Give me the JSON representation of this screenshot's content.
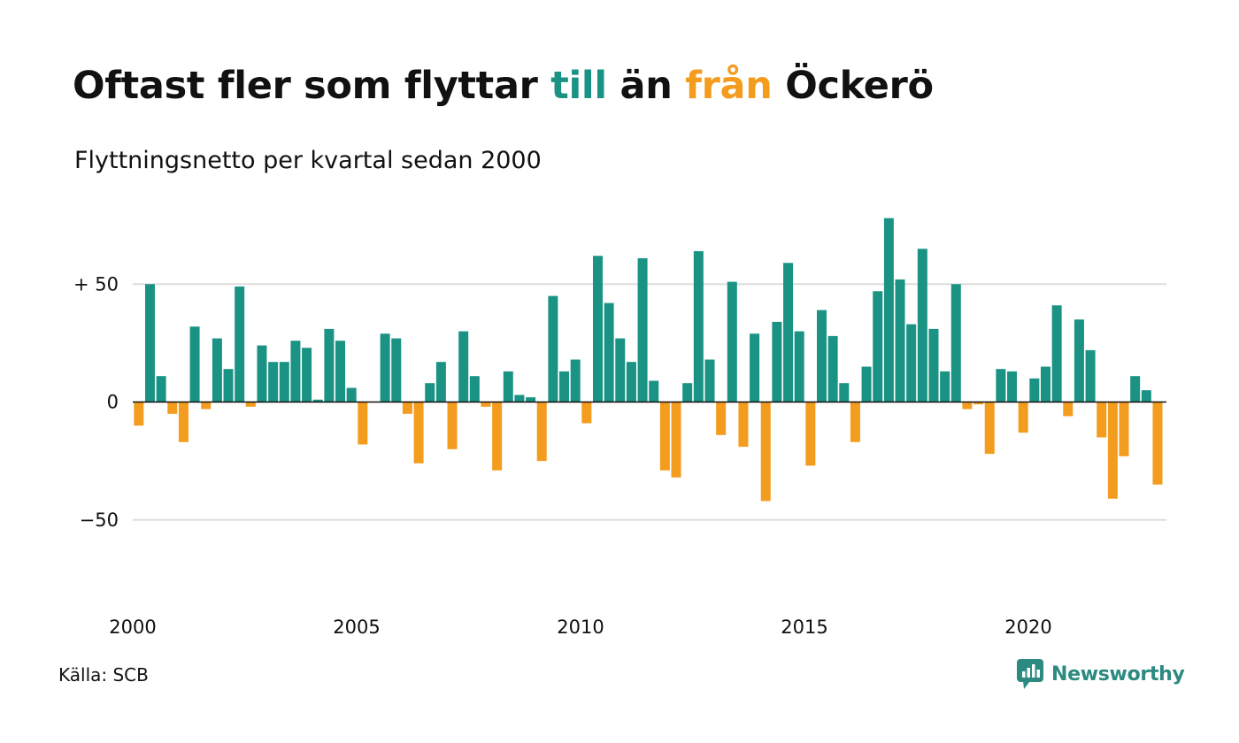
{
  "title": {
    "part1": "Oftast fler som flyttar ",
    "part2": "till",
    "part3": " än ",
    "part4": "från",
    "part5": " Öckerö"
  },
  "subtitle": "Flyttningsnetto per kvartal sedan 2000",
  "source": "Källa: SCB",
  "brand": {
    "name": "Newsworthy",
    "logo_icon": "newsworthy-chart-bubble-icon",
    "color": "#2c8a80"
  },
  "colors": {
    "positive": "#1a9384",
    "negative": "#f39c1e",
    "grid": "#dddddd",
    "zero_line": "#111111"
  },
  "chart_data": {
    "type": "bar",
    "title": "Oftast fler som flyttar till än från Öckerö",
    "subtitle": "Flyttningsnetto per kvartal sedan 2000",
    "x_start": "2000-Q1",
    "frequency": "quarterly",
    "values": [
      -10,
      50,
      11,
      -5,
      -17,
      32,
      -3,
      27,
      14,
      49,
      -2,
      24,
      17,
      17,
      26,
      23,
      1,
      31,
      26,
      6,
      -18,
      0,
      29,
      27,
      -5,
      -26,
      8,
      17,
      -20,
      30,
      11,
      -2,
      -29,
      13,
      3,
      2,
      -25,
      45,
      13,
      18,
      -9,
      62,
      42,
      27,
      17,
      61,
      9,
      -29,
      -32,
      8,
      64,
      18,
      -14,
      51,
      -19,
      29,
      -42,
      34,
      59,
      30,
      -27,
      39,
      28,
      8,
      -17,
      15,
      47,
      78,
      52,
      33,
      65,
      31,
      13,
      50,
      -3,
      -1,
      -22,
      14,
      13,
      -13,
      10,
      15,
      41,
      -6,
      35,
      22,
      -15,
      -41,
      -23,
      11,
      5,
      -35
    ],
    "x_tick_labels": [
      "2000",
      "2005",
      "2010",
      "2015",
      "2020"
    ],
    "y_ticks": [
      {
        "value": 50,
        "label": "+ 50"
      },
      {
        "value": 0,
        "label": "0"
      },
      {
        "value": -50,
        "label": "−50"
      }
    ],
    "ylim": [
      -88,
      80
    ],
    "grid": true,
    "legend": "none"
  }
}
